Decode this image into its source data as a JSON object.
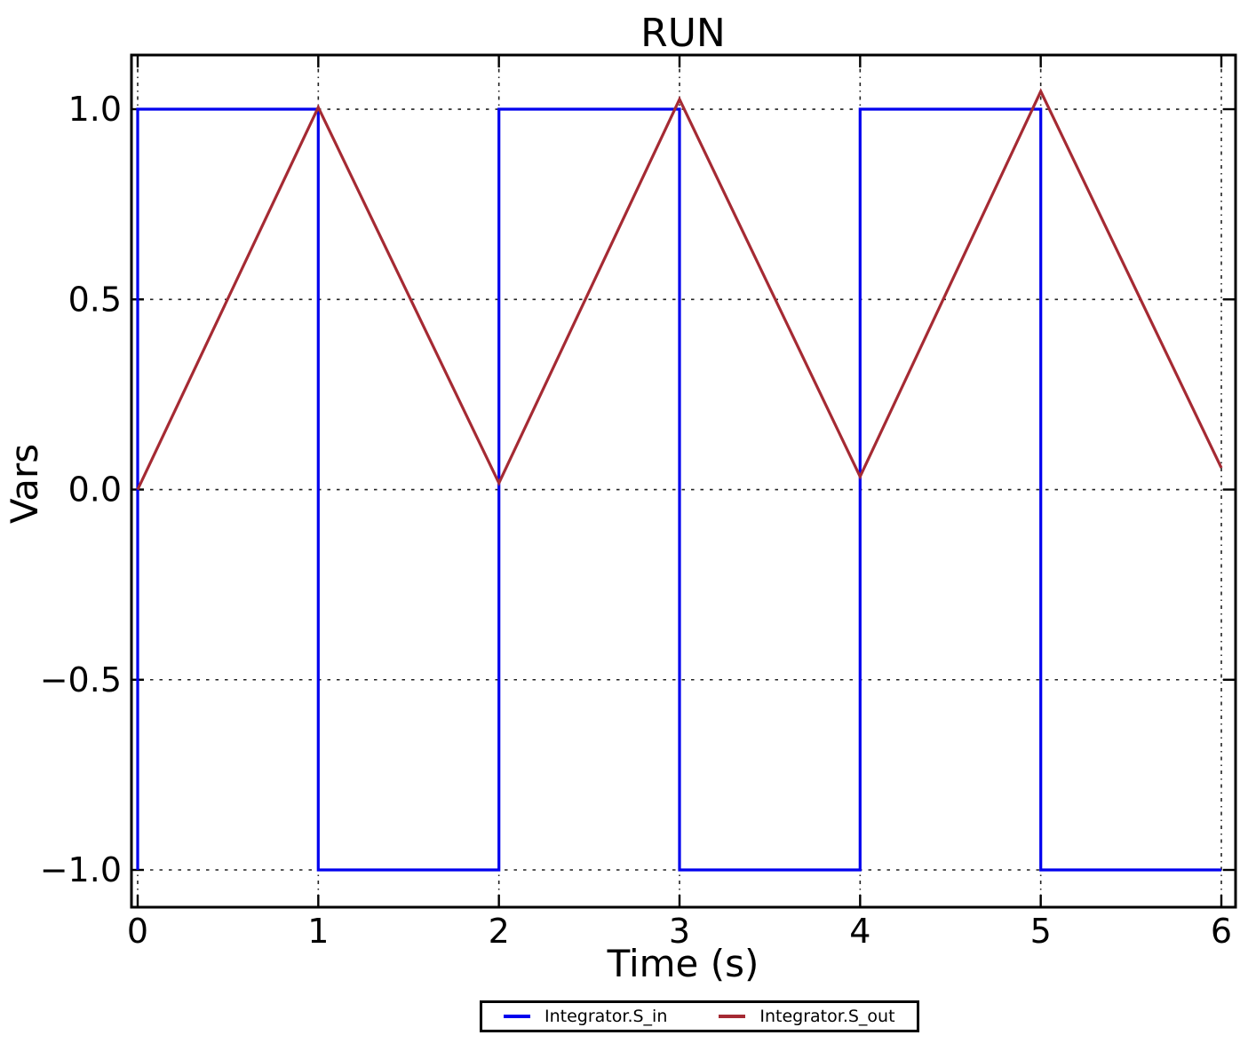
{
  "window": {
    "background_color": "#ffffff",
    "text_color": "#000000",
    "frame_color": "#000000",
    "grid_color": "#222222"
  },
  "chart_data": {
    "type": "line",
    "title": "RUN",
    "xlabel": "Time (s)",
    "ylabel": "Vars",
    "xlim": [
      -0.0344,
      6.0787
    ],
    "ylim": [
      -1.098,
      1.1424
    ],
    "xticks": [
      0,
      1,
      2,
      3,
      4,
      5,
      6
    ],
    "xtick_labels": [
      "0",
      "1",
      "2",
      "3",
      "4",
      "5",
      "6"
    ],
    "yticks": [
      -1.0,
      -0.5,
      0.0,
      0.5,
      1.0
    ],
    "ytick_labels": [
      "−1.0",
      "−0.5",
      "0.0",
      "0.5",
      "1.0"
    ],
    "grid": true,
    "grid_style": "dotted",
    "legend_position": "bottom-center-outside",
    "series": [
      {
        "name": "Integrator.S_in",
        "color": "#0000ee",
        "points": [
          [
            0,
            -1
          ],
          [
            0,
            1
          ],
          [
            1,
            1
          ],
          [
            1,
            -1
          ],
          [
            2,
            -1
          ],
          [
            2,
            1
          ],
          [
            3,
            1
          ],
          [
            3,
            -1
          ],
          [
            4,
            -1
          ],
          [
            4,
            1
          ],
          [
            5,
            1
          ],
          [
            5,
            -1
          ],
          [
            6,
            -1
          ]
        ]
      },
      {
        "name": "Integrator.S_out",
        "color": "#a52a33",
        "points": [
          [
            0,
            0
          ],
          [
            1,
            1.005
          ],
          [
            2,
            0.017
          ],
          [
            3,
            1.026
          ],
          [
            4,
            0.034
          ],
          [
            5,
            1.047
          ],
          [
            6,
            0.057
          ]
        ]
      }
    ]
  }
}
